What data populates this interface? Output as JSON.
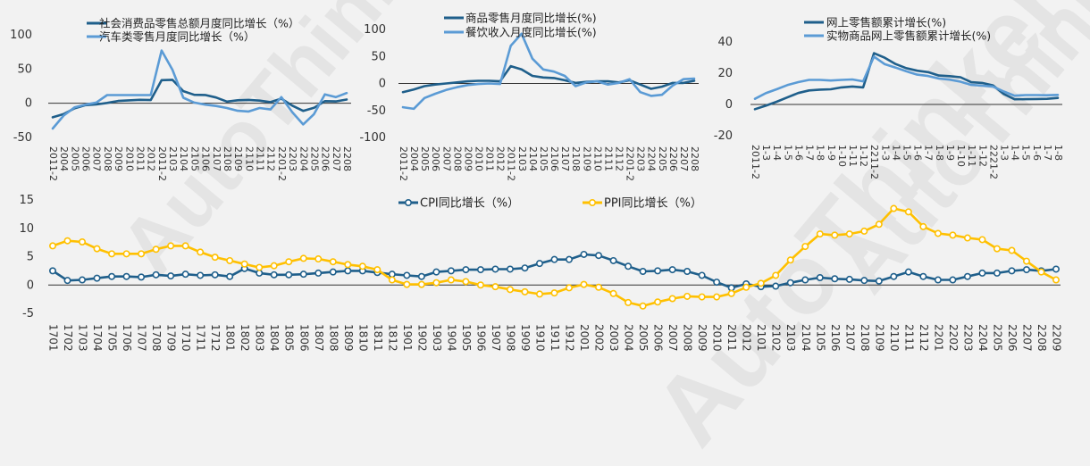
{
  "watermark": {
    "text": "AutoThinker"
  },
  "chart_data": [
    {
      "type": "line",
      "title": "",
      "legend_position": "top",
      "ylim": [
        -50,
        100
      ],
      "yticks": [
        -50,
        0,
        50,
        100
      ],
      "categories": [
        "2011-2",
        "2004",
        "2005",
        "2006",
        "2007",
        "2008",
        "2009",
        "2010",
        "2011",
        "2012",
        "2011-2",
        "2103",
        "2104",
        "2105",
        "2106",
        "2107",
        "2108",
        "2109",
        "2110",
        "2111",
        "2112",
        "2201-2",
        "2203",
        "2204",
        "2205",
        "2206",
        "2207",
        "2208"
      ],
      "series": [
        {
          "name": "社会消费品零售总额月度同比增长（%）",
          "color": "#1f5f8b",
          "values": [
            -20.5,
            -15.8,
            -7.5,
            -2.8,
            -1.8,
            0.5,
            3.3,
            4.3,
            5,
            4.6,
            33.8,
            34.2,
            17.7,
            12.4,
            12.1,
            8.5,
            2.5,
            4.4,
            4.9,
            3.9,
            1.7,
            6.7,
            -3.5,
            -11.1,
            -6.7,
            3.1,
            2.7,
            5.4
          ]
        },
        {
          "name": "汽车类零售月度同比增长（%）",
          "color": "#5b9bd5",
          "values": [
            -37,
            -18,
            -6,
            -2,
            1,
            12,
            12,
            12,
            12,
            12,
            77,
            49,
            8,
            1,
            -2,
            -4,
            -7,
            -11,
            -12,
            -7,
            -9,
            9,
            -13,
            -31,
            -16,
            13,
            9,
            15
          ]
        }
      ]
    },
    {
      "type": "line",
      "title": "",
      "legend_position": "top",
      "ylim": [
        -100,
        100
      ],
      "yticks": [
        -100,
        -50,
        0,
        50,
        100
      ],
      "categories": [
        "2011-2",
        "2004",
        "2005",
        "2006",
        "2007",
        "2008",
        "2009",
        "2010",
        "2011",
        "2012",
        "2011-2",
        "2103",
        "2104",
        "2105",
        "2106",
        "2107",
        "2108",
        "2109",
        "2110",
        "2111",
        "2112",
        "2201-2",
        "2203",
        "2204",
        "2205",
        "2206",
        "2207",
        "2208"
      ],
      "series": [
        {
          "name": "商品零售月度同比增长(%)",
          "color": "#1f5f8b",
          "values": [
            -16,
            -11,
            -5,
            -2,
            0,
            2,
            4,
            5,
            5,
            4,
            32,
            26,
            14,
            11,
            10,
            6,
            1,
            3,
            4,
            4,
            2,
            6,
            -2,
            -10,
            -6,
            1,
            1,
            5
          ]
        },
        {
          "name": "餐饮收入月度同比增长(%)",
          "color": "#5b9bd5",
          "values": [
            -44,
            -47,
            -27,
            -19,
            -12,
            -7,
            -3,
            -1,
            0,
            -1,
            70,
            92,
            46,
            26,
            22,
            14,
            -5,
            2,
            4,
            -2,
            1,
            8,
            -16,
            -23,
            -21,
            -4,
            8,
            9
          ]
        }
      ]
    },
    {
      "type": "line",
      "title": "",
      "legend_position": "top",
      "ylim": [
        -20,
        40
      ],
      "yticks": [
        -20,
        0,
        20,
        40
      ],
      "categories": [
        "2011-2",
        "1-3",
        "1-4",
        "1-5",
        "1-6",
        "1-7",
        "1-8",
        "1-9",
        "1-10",
        "1-11",
        "1-12",
        "2211-2",
        "1-3",
        "1-4",
        "1-5",
        "1-6",
        "1-7",
        "1-8",
        "1-9",
        "1-10",
        "1-11",
        "1-12",
        "2221-2",
        "1-3",
        "1-4",
        "1-5",
        "1-6",
        "1-7",
        "1-8"
      ],
      "series": [
        {
          "name": "网上零售额累计增长(%)",
          "color": "#1f5f8b",
          "values": [
            -3,
            -0.8,
            1.7,
            4.5,
            7.3,
            9.0,
            9.5,
            9.7,
            10.9,
            11.5,
            10.9,
            32.8,
            29.9,
            25.9,
            23.2,
            21.6,
            20.7,
            18.5,
            18.1,
            17.4,
            14.2,
            13.8,
            12.2,
            6.7,
            3.3,
            3.4,
            3.5,
            3.6,
            4.2
          ]
        },
        {
          "name": "实物商品网上零售额累计增长(%)",
          "color": "#5b9bd5",
          "values": [
            3.6,
            7.2,
            9.7,
            12.4,
            14.3,
            15.7,
            15.7,
            15.3,
            15.7,
            16.0,
            14.8,
            30.6,
            25.8,
            23.6,
            21.2,
            19.1,
            18.2,
            16.6,
            15.9,
            14.6,
            12.5,
            12.0,
            11.5,
            8.3,
            5.6,
            6.0,
            6.0,
            5.9,
            6.1
          ]
        }
      ]
    },
    {
      "type": "line",
      "title": "",
      "legend_position": "top",
      "ylim": [
        -5,
        15
      ],
      "yticks": [
        -5,
        0,
        5,
        10,
        15
      ],
      "categories": [
        "1701",
        "1702",
        "1703",
        "1704",
        "1705",
        "1706",
        "1707",
        "1708",
        "1709",
        "1710",
        "1711",
        "1712",
        "1801",
        "1802",
        "1803",
        "1804",
        "1805",
        "1806",
        "1807",
        "1808",
        "1809",
        "1810",
        "1811",
        "1812",
        "1901",
        "1902",
        "1903",
        "1904",
        "1905",
        "1906",
        "1907",
        "1908",
        "1909",
        "1910",
        "1911",
        "1912",
        "2001",
        "2002",
        "2003",
        "2004",
        "2005",
        "2006",
        "2007",
        "2008",
        "2009",
        "2010",
        "2011",
        "2012",
        "2101",
        "2102",
        "2103",
        "2104",
        "2105",
        "2106",
        "2107",
        "2108",
        "2109",
        "2110",
        "2111",
        "2112",
        "2201",
        "2202",
        "2203",
        "2204",
        "2205",
        "2206",
        "2207",
        "2208",
        "2209"
      ],
      "series": [
        {
          "name": "CPI同比增长（%）",
          "color": "#1f5f8b",
          "marker": "circle",
          "values": [
            2.5,
            0.8,
            0.9,
            1.2,
            1.5,
            1.5,
            1.4,
            1.8,
            1.6,
            1.9,
            1.7,
            1.8,
            1.5,
            2.9,
            2.1,
            1.8,
            1.8,
            1.9,
            2.1,
            2.3,
            2.5,
            2.5,
            2.2,
            1.9,
            1.7,
            1.5,
            2.3,
            2.5,
            2.7,
            2.7,
            2.8,
            2.8,
            3.0,
            3.8,
            4.5,
            4.5,
            5.4,
            5.2,
            4.3,
            3.3,
            2.4,
            2.5,
            2.7,
            2.4,
            1.7,
            0.5,
            -0.5,
            0.2,
            -0.3,
            -0.2,
            0.4,
            0.9,
            1.3,
            1.1,
            1.0,
            0.8,
            0.7,
            1.5,
            2.3,
            1.5,
            0.9,
            0.9,
            1.5,
            2.1,
            2.1,
            2.5,
            2.7,
            2.5,
            2.8
          ]
        },
        {
          "name": "PPI同比增长（%）",
          "color": "#ffc000",
          "marker": "circle",
          "values": [
            6.9,
            7.8,
            7.6,
            6.4,
            5.5,
            5.5,
            5.5,
            6.3,
            6.9,
            6.9,
            5.8,
            4.9,
            4.3,
            3.7,
            3.1,
            3.4,
            4.1,
            4.7,
            4.6,
            4.1,
            3.6,
            3.3,
            2.7,
            0.9,
            0.1,
            0.1,
            0.4,
            0.9,
            0.6,
            0.0,
            -0.3,
            -0.8,
            -1.2,
            -1.6,
            -1.4,
            -0.5,
            0.1,
            -0.4,
            -1.5,
            -3.1,
            -3.7,
            -3.0,
            -2.4,
            -2.0,
            -2.1,
            -2.1,
            -1.5,
            -0.4,
            0.3,
            1.7,
            4.4,
            6.8,
            9.0,
            8.8,
            9.0,
            9.5,
            10.7,
            13.5,
            12.9,
            10.3,
            9.1,
            8.8,
            8.3,
            8.0,
            6.4,
            6.1,
            4.2,
            2.3,
            0.9
          ]
        }
      ]
    }
  ]
}
